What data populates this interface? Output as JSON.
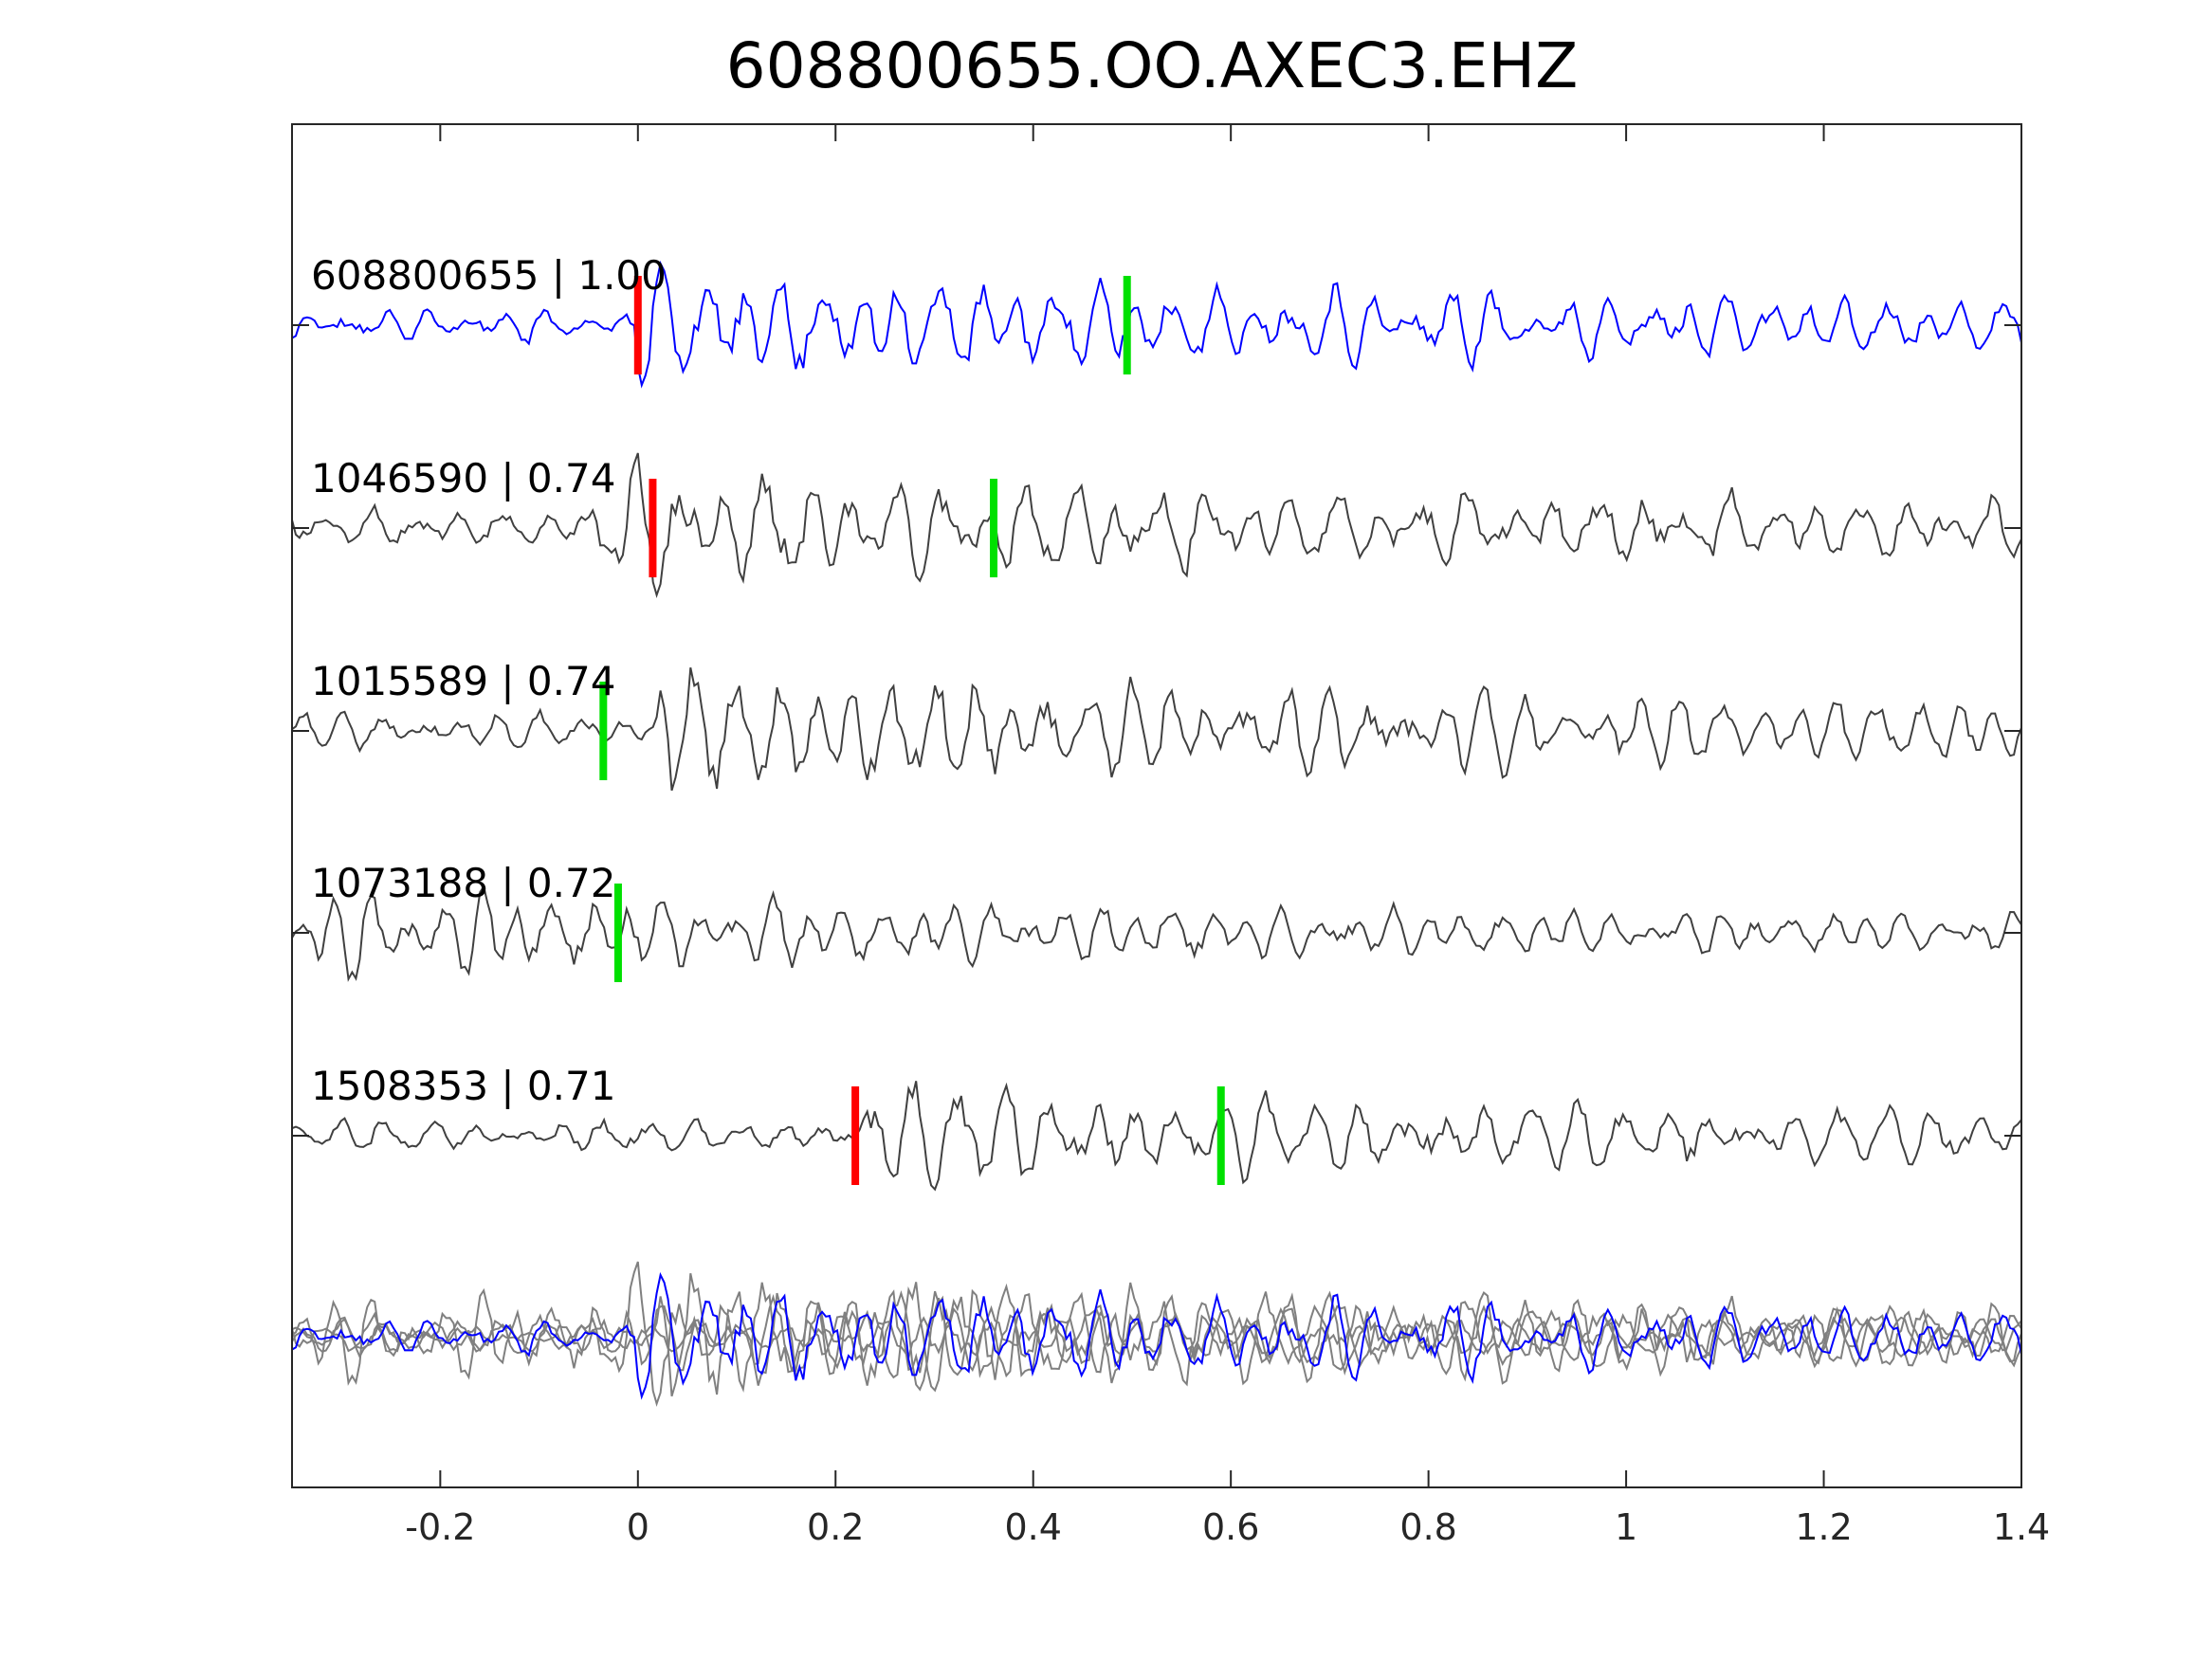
{
  "chart_data": {
    "type": "line",
    "title": "608800655.OO.AXEC3.EHZ",
    "xlabel": "",
    "ylabel": "",
    "xlim": [
      -0.35,
      1.4
    ],
    "x_ticks": [
      -0.2,
      0,
      0.2,
      0.4,
      0.6,
      0.8,
      1,
      1.2,
      1.4
    ],
    "x_tick_labels": [
      "-0.2",
      "0",
      "0.2",
      "0.4",
      "0.6",
      "0.8",
      "1",
      "1.2",
      "1.4"
    ],
    "y_ticks_visible": false,
    "grid": false,
    "colors": {
      "reference": "#0000ff",
      "match": "#404040",
      "overlay_match": "#808080",
      "p_pick": "#ff0000",
      "s_pick": "#00e000"
    },
    "series": [
      {
        "label": "608800655 | 1.00",
        "role": "reference",
        "p_pick": 0.0,
        "s_pick": 0.495,
        "amplitude_scale": 1.0,
        "seed": 11,
        "onset": 0.0
      },
      {
        "label": "1046590 | 0.74",
        "role": "match",
        "p_pick": 0.015,
        "s_pick": 0.36,
        "amplitude_scale": 1.1,
        "seed": 23,
        "onset": -0.05
      },
      {
        "label": "1015589 | 0.74",
        "role": "match",
        "p_pick": null,
        "s_pick": -0.035,
        "amplitude_scale": 1.15,
        "seed": 37,
        "onset": 0.02
      },
      {
        "label": "1073188 | 0.72",
        "role": "match",
        "p_pick": null,
        "s_pick": -0.02,
        "amplitude_scale": 0.8,
        "seed": 41,
        "onset": -0.33
      },
      {
        "label": "1508353 | 0.71",
        "role": "match",
        "p_pick": 0.22,
        "s_pick": 0.59,
        "amplitude_scale": 0.95,
        "seed": 53,
        "onset": 0.22
      }
    ],
    "overlay": {
      "label": "",
      "description_visible": false
    }
  }
}
